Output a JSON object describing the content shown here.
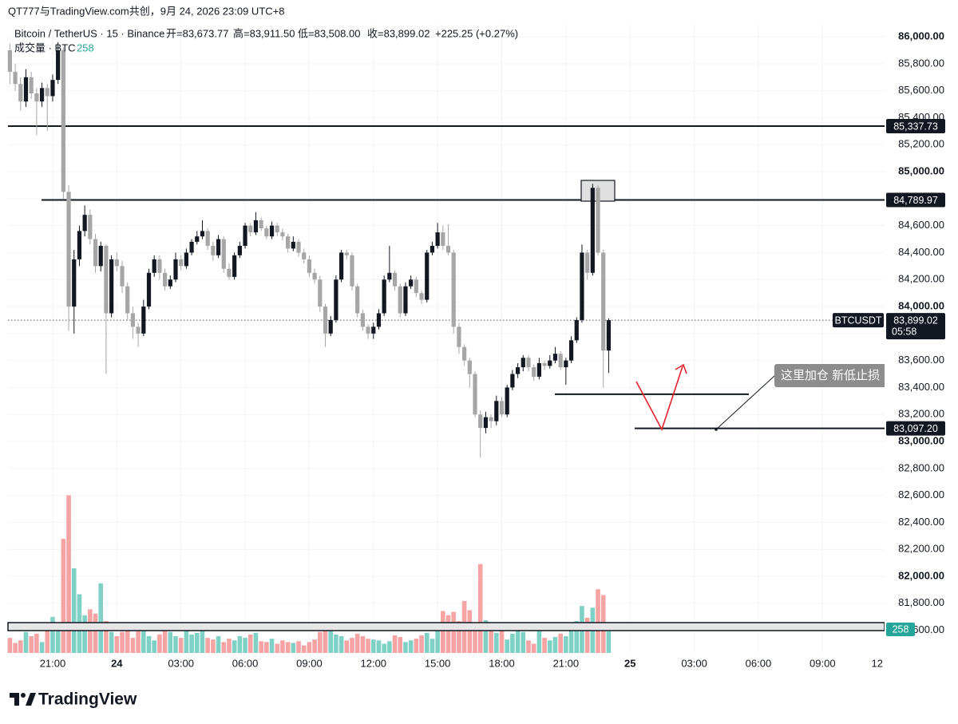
{
  "chart_data": {
    "type": "candlestick",
    "watermark": "QT777与TradingView.com共创，9月 24, 2026 23:09 UTC+8",
    "legend": {
      "symbol": "Bitcoin / TetherUS · 15 · Binance",
      "items": [
        "开=83,673.77",
        "高=83,911.50",
        "低=83,508.00",
        "收=83,899.02",
        "+225.25 (+0.27%)"
      ]
    },
    "volume_legend": "成交量 · BTC",
    "annotation": "这里加仓 新低止损",
    "brand": "TradingView",
    "up_color": "#131722",
    "down_color": "#a6a6a6",
    "volume_up_color": "#7fd1c6",
    "volume_down_color": "#f5a3a3",
    "xlim": [
      -1.85,
      163.6
    ],
    "xticks": [
      {
        "value": 8,
        "label": "21:00"
      },
      {
        "value": 20,
        "label": "24"
      },
      {
        "value": 32,
        "label": "03:00"
      },
      {
        "value": 44,
        "label": "06:00"
      },
      {
        "value": 56,
        "label": "09:00"
      },
      {
        "value": 68,
        "label": "12:00"
      },
      {
        "value": 80,
        "label": "15:00"
      },
      {
        "value": 92,
        "label": "18:00"
      },
      {
        "value": 104,
        "label": "21:00"
      },
      {
        "value": 116,
        "label": "25"
      },
      {
        "value": 128,
        "label": "03:00"
      },
      {
        "value": 140,
        "label": "06:00"
      },
      {
        "value": 152,
        "label": "09:00"
      },
      {
        "value": 164,
        "label": "12"
      }
    ],
    "ylim": [
      81432,
      86095
    ],
    "yticks": [
      {
        "value": 81600,
        "label": "81,600.00"
      },
      {
        "value": 81800,
        "label": "81,800.00"
      },
      {
        "value": 82000,
        "label": "82,000.00"
      },
      {
        "value": 82200,
        "label": "82,200.00"
      },
      {
        "value": 82400,
        "label": "82,400.00"
      },
      {
        "value": 82600,
        "label": "82,600.00"
      },
      {
        "value": 82800,
        "label": "82,800.00"
      },
      {
        "value": 83000,
        "label": "83,000.00"
      },
      {
        "value": 83200,
        "label": "83,200.00"
      },
      {
        "value": 83400,
        "label": "83,400.00"
      },
      {
        "value": 83600,
        "label": "83,600.00"
      },
      {
        "value": 83800,
        "label": "83,800.00"
      },
      {
        "value": 84000,
        "label": "84,000.00"
      },
      {
        "value": 84200,
        "label": "84,200.00"
      },
      {
        "value": 84400,
        "label": "84,400.00"
      },
      {
        "value": 84600,
        "label": "84,600.00"
      },
      {
        "value": 84800,
        "label": "84,800.00"
      },
      {
        "value": 85000,
        "label": "85,000.00"
      },
      {
        "value": 85200,
        "label": "85,200.00"
      },
      {
        "value": 85400,
        "label": "85,400.00"
      },
      {
        "value": 85600,
        "label": "85,600.00"
      },
      {
        "value": 85800,
        "label": "85,800.00"
      },
      {
        "value": 86000,
        "label": "86,000.00"
      }
    ],
    "grid": true,
    "volume_ylim": [
      0,
      7500
    ],
    "levels": [
      {
        "value": 85337.73,
        "label": "85,337.73"
      },
      {
        "value": 84789.97,
        "label": "84,789.97"
      },
      {
        "value": 83097.2,
        "label": "83,097.20"
      },
      83350
    ],
    "current_price": {
      "value": 83899.02,
      "label": "83,899.02",
      "symbol": "BTCUSDT",
      "countdown": "05:58"
    },
    "ohlc": [
      [
        85900,
        85950,
        85650,
        85740
      ],
      [
        85740,
        85800,
        85600,
        85650
      ],
      [
        85650,
        85700,
        85450,
        85520
      ],
      [
        85520,
        85760,
        85480,
        85700
      ],
      [
        85700,
        85740,
        85540,
        85580
      ],
      [
        85580,
        85620,
        85270,
        85520
      ],
      [
        85520,
        85660,
        85480,
        85620
      ],
      [
        85620,
        85650,
        85300,
        85560
      ],
      [
        85560,
        85720,
        85520,
        85680
      ],
      [
        85680,
        85960,
        85650,
        85900
      ],
      [
        85900,
        85920,
        84800,
        84850
      ],
      [
        84850,
        84900,
        83820,
        84000
      ],
      [
        84000,
        84420,
        83800,
        84350
      ],
      [
        84350,
        84600,
        84300,
        84560
      ],
      [
        84560,
        84750,
        84520,
        84680
      ],
      [
        84680,
        84720,
        84460,
        84500
      ],
      [
        84500,
        84540,
        84250,
        84300
      ],
      [
        84300,
        84480,
        84260,
        84450
      ],
      [
        84450,
        84460,
        83500,
        83950
      ],
      [
        83950,
        84380,
        83920,
        84350
      ],
      [
        84350,
        84400,
        84260,
        84300
      ],
      [
        84300,
        84340,
        84100,
        84150
      ],
      [
        84150,
        84180,
        83900,
        83950
      ],
      [
        83950,
        84000,
        83760,
        83850
      ],
      [
        83850,
        83880,
        83700,
        83800
      ],
      [
        83800,
        84050,
        83780,
        84000
      ],
      [
        84000,
        84280,
        83980,
        84250
      ],
      [
        84250,
        84380,
        84220,
        84350
      ],
      [
        84350,
        84380,
        84200,
        84250
      ],
      [
        84250,
        84280,
        84120,
        84150
      ],
      [
        84150,
        84230,
        84130,
        84200
      ],
      [
        84200,
        84400,
        84180,
        84350
      ],
      [
        84350,
        84380,
        84270,
        84300
      ],
      [
        84300,
        84430,
        84280,
        84400
      ],
      [
        84400,
        84500,
        84380,
        84480
      ],
      [
        84480,
        84560,
        84460,
        84520
      ],
      [
        84520,
        84640,
        84500,
        84560
      ],
      [
        84560,
        84580,
        84420,
        84450
      ],
      [
        84450,
        84480,
        84340,
        84380
      ],
      [
        84380,
        84530,
        84360,
        84500
      ],
      [
        84500,
        84520,
        84250,
        84280
      ],
      [
        84280,
        84320,
        84200,
        84220
      ],
      [
        84220,
        84400,
        84200,
        84380
      ],
      [
        84380,
        84480,
        84360,
        84450
      ],
      [
        84450,
        84620,
        84430,
        84600
      ],
      [
        84600,
        84620,
        84520,
        84550
      ],
      [
        84550,
        84700,
        84530,
        84640
      ],
      [
        84640,
        84660,
        84560,
        84580
      ],
      [
        84580,
        84600,
        84500,
        84520
      ],
      [
        84520,
        84630,
        84500,
        84600
      ],
      [
        84600,
        84620,
        84520,
        84550
      ],
      [
        84550,
        84580,
        84490,
        84520
      ],
      [
        84520,
        84540,
        84400,
        84430
      ],
      [
        84430,
        84520,
        84410,
        84480
      ],
      [
        84480,
        84500,
        84370,
        84400
      ],
      [
        84400,
        84430,
        84320,
        84350
      ],
      [
        84350,
        84380,
        84220,
        84250
      ],
      [
        84250,
        84280,
        84170,
        84200
      ],
      [
        84200,
        84230,
        83960,
        84000
      ],
      [
        84000,
        84020,
        83700,
        83800
      ],
      [
        83800,
        83930,
        83780,
        83900
      ],
      [
        83900,
        84230,
        83880,
        84200
      ],
      [
        84200,
        84420,
        84180,
        84400
      ],
      [
        84400,
        84420,
        84350,
        84380
      ],
      [
        84380,
        84400,
        84120,
        84150
      ],
      [
        84150,
        84170,
        83920,
        83950
      ],
      [
        83950,
        83980,
        83820,
        83850
      ],
      [
        83850,
        83870,
        83760,
        83800
      ],
      [
        83800,
        83880,
        83760,
        83850
      ],
      [
        83850,
        83980,
        83830,
        83950
      ],
      [
        83950,
        84230,
        83930,
        84200
      ],
      [
        84200,
        84450,
        84180,
        84250
      ],
      [
        84250,
        84270,
        84120,
        84150
      ],
      [
        84150,
        84170,
        83920,
        83950
      ],
      [
        83950,
        84180,
        83930,
        84150
      ],
      [
        84150,
        84230,
        84130,
        84200
      ],
      [
        84200,
        84220,
        84070,
        84100
      ],
      [
        84100,
        84120,
        84020,
        84050
      ],
      [
        84050,
        84420,
        84030,
        84400
      ],
      [
        84400,
        84480,
        84380,
        84450
      ],
      [
        84450,
        84620,
        84430,
        84550
      ],
      [
        84550,
        84600,
        84420,
        84450
      ],
      [
        84450,
        84610,
        84380,
        84400
      ],
      [
        84400,
        84420,
        83800,
        83850
      ],
      [
        83850,
        83880,
        83650,
        83700
      ],
      [
        83700,
        83720,
        83560,
        83600
      ],
      [
        83600,
        83620,
        83400,
        83500
      ],
      [
        83500,
        83520,
        83180,
        83200
      ],
      [
        83200,
        83230,
        82880,
        83100
      ],
      [
        83100,
        83220,
        83060,
        83180
      ],
      [
        83180,
        83200,
        83100,
        83150
      ],
      [
        83150,
        83340,
        83120,
        83300
      ],
      [
        83300,
        83330,
        83180,
        83200
      ],
      [
        83200,
        83420,
        83180,
        83400
      ],
      [
        83400,
        83530,
        83380,
        83500
      ],
      [
        83500,
        83580,
        83470,
        83550
      ],
      [
        83550,
        83640,
        83520,
        83620
      ],
      [
        83620,
        83640,
        83520,
        83550
      ],
      [
        83550,
        83570,
        83450,
        83480
      ],
      [
        83480,
        83620,
        83460,
        83580
      ],
      [
        83580,
        83600,
        83530,
        83560
      ],
      [
        83560,
        83640,
        83540,
        83600
      ],
      [
        83600,
        83700,
        83580,
        83650
      ],
      [
        83650,
        83670,
        83530,
        83550
      ],
      [
        83550,
        83620,
        83420,
        83600
      ],
      [
        83600,
        83780,
        83580,
        83750
      ],
      [
        83750,
        83920,
        83730,
        83900
      ],
      [
        83900,
        84460,
        83880,
        84400
      ],
      [
        84400,
        84420,
        84200,
        84250
      ],
      [
        84250,
        84910,
        84230,
        84880
      ],
      [
        84880,
        84900,
        84380,
        84400
      ],
      [
        84400,
        84420,
        83400,
        83673.77
      ],
      [
        83673.77,
        83911.5,
        83508,
        83899.02
      ]
    ],
    "volume": [
      180,
      120,
      150,
      250,
      200,
      230,
      130,
      300,
      430,
      330,
      1360,
      1880,
      1010,
      700,
      450,
      520,
      470,
      830,
      380,
      250,
      200,
      250,
      300,
      180,
      260,
      300,
      200,
      150,
      220,
      330,
      250,
      200,
      180,
      300,
      220,
      240,
      270,
      180,
      160,
      200,
      130,
      170,
      150,
      200,
      180,
      220,
      240,
      140,
      130,
      170,
      110,
      150,
      130,
      120,
      140,
      90,
      130,
      160,
      250,
      310,
      260,
      220,
      200,
      150,
      180,
      230,
      200,
      170,
      160,
      150,
      110,
      140,
      210,
      190,
      130,
      150,
      170,
      210,
      240,
      170,
      300,
      500,
      450,
      490,
      380,
      620,
      510,
      330,
      1060,
      390,
      290,
      240,
      270,
      160,
      230,
      340,
      250,
      150,
      110,
      260,
      180,
      150,
      190,
      230,
      200,
      310,
      380,
      560,
      420,
      540,
      760,
      690,
      258
    ]
  }
}
